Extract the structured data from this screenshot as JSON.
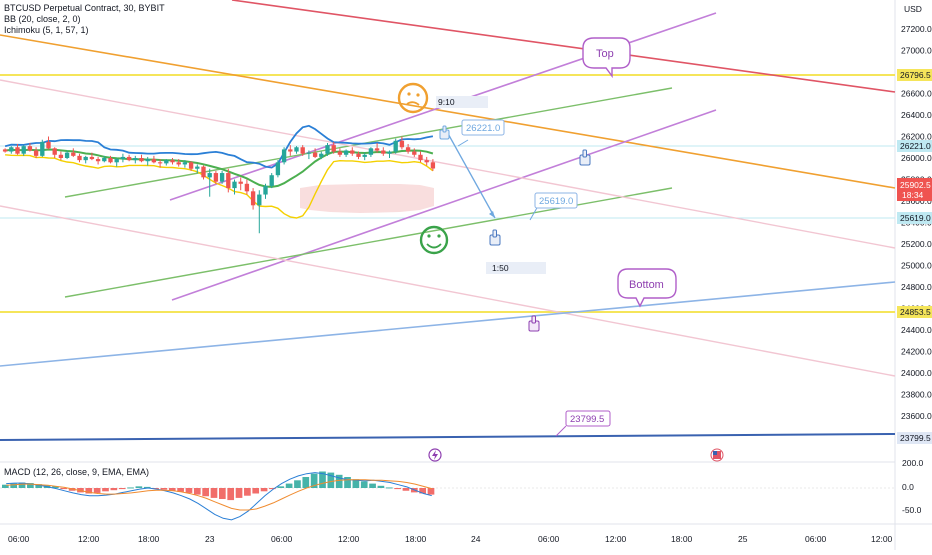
{
  "header": {
    "symbol_line": "BTCUSD Perpetual Contract, 30, BYBIT",
    "bb_line": "BB (20, close, 2, 0)",
    "ichimoku_line": "Ichimoku (5, 1, 57, 1)",
    "macd_line": "MACD (12, 26, close, 9, EMA, EMA)"
  },
  "axis": {
    "currency": "USD",
    "price_ticks": [
      "27200.0",
      "27000.0",
      "26800.0",
      "26600.0",
      "26400.0",
      "26200.0",
      "26000.0",
      "25800.0",
      "25600.0",
      "25400.0",
      "25200.0",
      "25000.0",
      "24800.0",
      "24600.0",
      "24400.0",
      "24200.0",
      "24000.0",
      "23800.0",
      "23600.0"
    ],
    "macd_ticks": [
      "200.0",
      "0.0",
      "-50.0"
    ],
    "time_ticks": [
      "06:00",
      "12:00",
      "18:00",
      "23",
      "06:00",
      "12:00",
      "18:00",
      "24",
      "06:00",
      "12:00",
      "18:00",
      "25",
      "06:00",
      "12:00"
    ]
  },
  "price_labels": {
    "level_26796": "26796.5",
    "level_26221": "26221.0",
    "level_current": "25902.5",
    "countdown": "18:34",
    "level_25619": "25619.0",
    "level_24853": "24853.5",
    "level_23799": "23799.5"
  },
  "annotations": {
    "top_bubble": "Top",
    "bottom_bubble": "Bottom",
    "callout_26221": "26221.0",
    "callout_25619": "25619.0",
    "callout_23799": "23799.5",
    "time_label_1": "9:10",
    "time_label_2": "1:50"
  },
  "colors": {
    "yellow_level": "#f5e55a",
    "cyan_level": "#7fd6e6",
    "red_trend": "#e05565",
    "orange_trend": "#f0a030",
    "purple_trend": "#c27fd9",
    "green_trend": "#7cbf6a",
    "pink_trend": "#f2b8c6",
    "blue_trend": "#8db4e6",
    "navy_trend": "#3a62b0",
    "bb_line": "#2a7fd6",
    "candle_up": "#26a69a",
    "candle_down": "#ef5350"
  },
  "chart_data": {
    "type": "line",
    "title": "BTCUSD Perpetual Contract, 30, BYBIT",
    "ylim": [
      23580,
      27300
    ],
    "horizontal_levels": [
      26796.5,
      26221.0,
      25619.0,
      24853.5
    ],
    "last_price": 25902.5,
    "candles": [
      [
        26080,
        26090,
        26050,
        26060
      ],
      [
        26060,
        26110,
        26040,
        26100
      ],
      [
        26100,
        26130,
        26030,
        26040
      ],
      [
        26040,
        26120,
        26020,
        26110
      ],
      [
        26110,
        26140,
        26060,
        26070
      ],
      [
        26070,
        26100,
        26000,
        26020
      ],
      [
        26020,
        26170,
        26010,
        26150
      ],
      [
        26150,
        26200,
        26080,
        26090
      ],
      [
        26090,
        26100,
        26000,
        26030
      ],
      [
        26030,
        26060,
        25980,
        26000
      ],
      [
        26000,
        26070,
        25990,
        26050
      ],
      [
        26050,
        26090,
        26010,
        26020
      ],
      [
        26020,
        26040,
        25960,
        25980
      ],
      [
        25980,
        26020,
        25950,
        26010
      ],
      [
        26010,
        26050,
        25980,
        25990
      ],
      [
        25990,
        26010,
        25940,
        25970
      ],
      [
        25970,
        26020,
        25960,
        26000
      ],
      [
        26000,
        26020,
        25950,
        25960
      ],
      [
        25960,
        26000,
        25920,
        25990
      ],
      [
        25990,
        26040,
        25960,
        26010
      ],
      [
        26010,
        26030,
        25970,
        25980
      ],
      [
        25980,
        26020,
        25950,
        26000
      ],
      [
        26000,
        26030,
        25960,
        25970
      ],
      [
        25970,
        26010,
        25930,
        25990
      ],
      [
        25990,
        26020,
        25950,
        25960
      ],
      [
        25960,
        25990,
        25910,
        25950
      ],
      [
        25950,
        25990,
        25930,
        25980
      ],
      [
        25980,
        26000,
        25940,
        25960
      ],
      [
        25960,
        25990,
        25920,
        25940
      ],
      [
        25940,
        25980,
        25910,
        25960
      ],
      [
        25960,
        25970,
        25880,
        25900
      ],
      [
        25900,
        25940,
        25860,
        25920
      ],
      [
        25920,
        25930,
        25800,
        25820
      ],
      [
        25820,
        25900,
        25640,
        25860
      ],
      [
        25860,
        25880,
        25760,
        25780
      ],
      [
        25780,
        25880,
        25760,
        25860
      ],
      [
        25860,
        25900,
        25680,
        25720
      ],
      [
        25720,
        25800,
        25660,
        25780
      ],
      [
        25780,
        25820,
        25700,
        25760
      ],
      [
        25760,
        25800,
        25660,
        25690
      ],
      [
        25690,
        25720,
        25520,
        25560
      ],
      [
        25560,
        25700,
        25300,
        25660
      ],
      [
        25660,
        25760,
        25620,
        25740
      ],
      [
        25740,
        25860,
        25720,
        25840
      ],
      [
        25840,
        25980,
        25820,
        25960
      ],
      [
        25960,
        26100,
        25940,
        26080
      ],
      [
        26080,
        26120,
        26020,
        26060
      ],
      [
        26060,
        26110,
        26040,
        26100
      ],
      [
        26100,
        26120,
        26020,
        26040
      ],
      [
        26040,
        26070,
        25990,
        26050
      ],
      [
        26050,
        26090,
        26000,
        26010
      ],
      [
        26010,
        26060,
        25990,
        26040
      ],
      [
        26040,
        26140,
        26020,
        26120
      ],
      [
        26120,
        26150,
        26040,
        26060
      ],
      [
        26060,
        26090,
        26010,
        26030
      ],
      [
        26030,
        26080,
        26010,
        26070
      ],
      [
        26070,
        26100,
        26020,
        26040
      ],
      [
        26040,
        26060,
        25990,
        26010
      ],
      [
        26010,
        26050,
        25980,
        26030
      ],
      [
        26030,
        26100,
        26010,
        26090
      ],
      [
        26090,
        26140,
        26050,
        26070
      ],
      [
        26070,
        26100,
        26020,
        26040
      ],
      [
        26040,
        26070,
        26000,
        26060
      ],
      [
        26060,
        26180,
        26040,
        26160
      ],
      [
        26160,
        26200,
        26080,
        26100
      ],
      [
        26100,
        26130,
        26040,
        26060
      ],
      [
        26060,
        26090,
        26010,
        26030
      ],
      [
        26030,
        26060,
        25960,
        25980
      ],
      [
        25980,
        26010,
        25930,
        25960
      ],
      [
        25960,
        25990,
        25880,
        25902.5
      ]
    ],
    "macd_histogram": [
      6,
      8,
      10,
      9,
      7,
      5,
      3,
      -2,
      -5,
      -8,
      -10,
      -9,
      -6,
      -4,
      -2,
      1,
      3,
      2,
      -1,
      -3,
      -5,
      -7,
      -9,
      -12,
      -15,
      -18,
      -20,
      -22,
      -18,
      -14,
      -10,
      -6,
      -2,
      3,
      8,
      14,
      20,
      26,
      30,
      28,
      24,
      20,
      16,
      12,
      8,
      4,
      1,
      -2,
      -5,
      -8,
      -10,
      -12
    ],
    "macd_line": [
      8,
      9,
      9,
      7,
      5,
      2,
      -1,
      -5,
      -9,
      -12,
      -14,
      -14,
      -13,
      -11,
      -8,
      -5,
      -2,
      0,
      -2,
      -5,
      -9,
      -14,
      -20,
      -28,
      -38,
      -48,
      -55,
      -58,
      -52,
      -42,
      -28,
      -14,
      -2,
      8,
      16,
      22,
      26,
      28,
      26,
      22,
      18,
      15,
      14,
      13,
      14,
      12,
      10,
      6,
      2,
      -4,
      -10,
      -14
    ],
    "signal_line": [
      5,
      6,
      7,
      7,
      6,
      5,
      3,
      1,
      -2,
      -5,
      -8,
      -10,
      -11,
      -11,
      -10,
      -9,
      -7,
      -5,
      -4,
      -4,
      -5,
      -7,
      -10,
      -14,
      -19,
      -25,
      -31,
      -37,
      -40,
      -40,
      -38,
      -33,
      -27,
      -20,
      -13,
      -6,
      0,
      5,
      9,
      12,
      14,
      15,
      15,
      15,
      14,
      14,
      13,
      12,
      10,
      7,
      3,
      -1
    ]
  }
}
